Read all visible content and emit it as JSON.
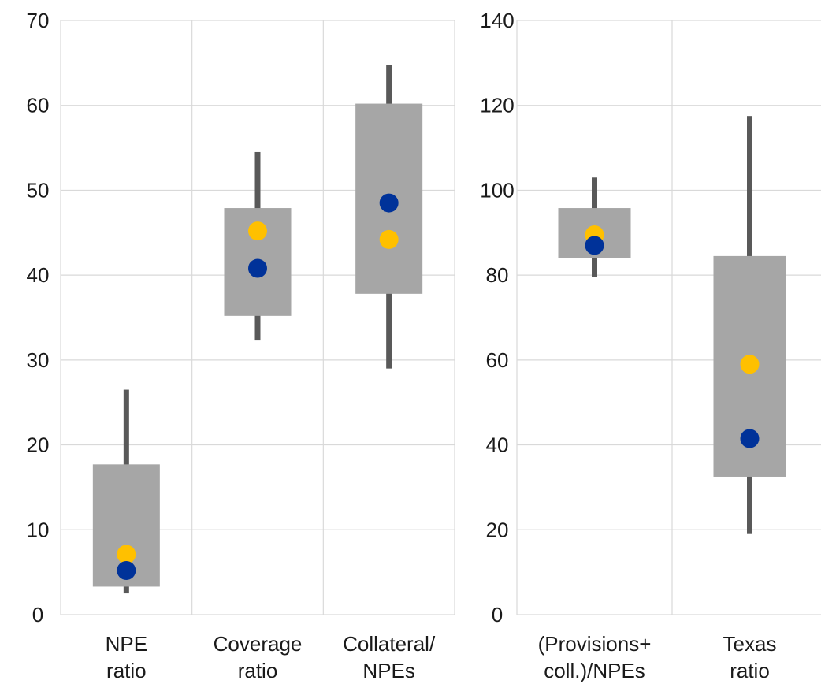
{
  "colors": {
    "box": "#a6a6a6",
    "whisker": "#595959",
    "grid": "#d9d9d9",
    "marker_a": "#003299",
    "marker_b": "#ffc000"
  },
  "chart_data": [
    {
      "type": "box",
      "ylim": [
        0,
        70
      ],
      "yticks": [
        0,
        10,
        20,
        30,
        40,
        50,
        60,
        70
      ],
      "grid": true,
      "categories": [
        {
          "label": [
            "NPE",
            "ratio"
          ],
          "whisker_low": 2.5,
          "box_low": 3.3,
          "box_high": 17.7,
          "whisker_high": 26.5,
          "marker_a": 5.2,
          "marker_b": 7.1
        },
        {
          "label": [
            "Coverage",
            "ratio"
          ],
          "whisker_low": 32.3,
          "box_low": 35.2,
          "box_high": 47.9,
          "whisker_high": 54.5,
          "marker_a": 40.8,
          "marker_b": 45.2
        },
        {
          "label": [
            "Collateral/",
            "NPEs"
          ],
          "whisker_low": 29.0,
          "box_low": 37.8,
          "box_high": 60.2,
          "whisker_high": 64.8,
          "marker_a": 48.5,
          "marker_b": 44.2
        }
      ]
    },
    {
      "type": "box",
      "ylim": [
        0,
        140
      ],
      "yticks": [
        0,
        20,
        40,
        60,
        80,
        100,
        120,
        140
      ],
      "grid": true,
      "categories": [
        {
          "label": [
            "(Provisions+",
            "coll.)/NPEs"
          ],
          "whisker_low": 79.5,
          "box_low": 84.0,
          "box_high": 95.8,
          "whisker_high": 103.0,
          "marker_a": 87.0,
          "marker_b": 89.5
        },
        {
          "label": [
            "Texas",
            "ratio"
          ],
          "whisker_low": 19.0,
          "box_low": 32.5,
          "box_high": 84.5,
          "whisker_high": 117.5,
          "marker_a": 41.5,
          "marker_b": 59.0
        }
      ]
    }
  ]
}
